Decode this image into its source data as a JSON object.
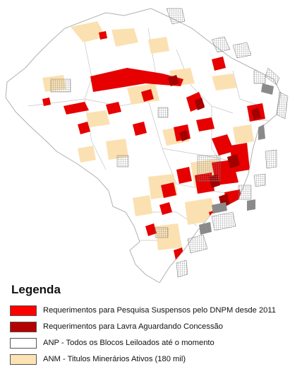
{
  "legend": {
    "title": "Legenda",
    "items": [
      {
        "label": "Requerimentos para Pesquisa Suspensos pelo DNPM desde 2011",
        "color": "#ff0000"
      },
      {
        "label": "Requerimentos para Lavra Aguardando Concessão",
        "color": "#b30000"
      },
      {
        "label": "ANP - Todos os Blocos Leiloados até o momento",
        "color": "#ffffff"
      },
      {
        "label": "ANM - Titulos Minerários Ativos (180 mil)",
        "color": "#fde3b3"
      }
    ]
  },
  "map_colors": {
    "land": "#ffffff",
    "border": "#b5b5b5",
    "pesquisa": "#e60000",
    "lavra": "#a30000",
    "titulos": "#fbe0ad",
    "blocos": "#9a9a9a"
  }
}
